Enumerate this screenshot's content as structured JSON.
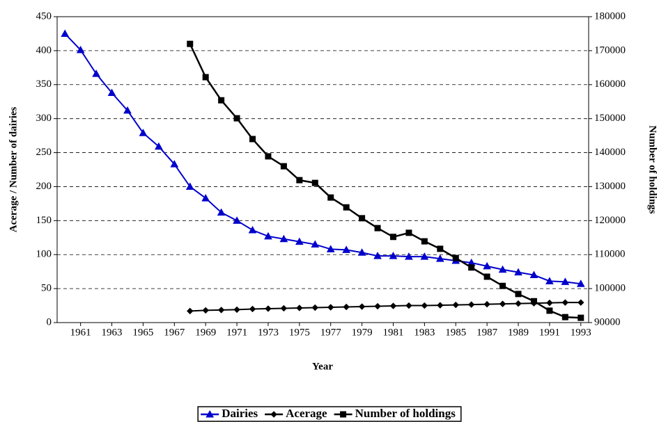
{
  "chart_data": {
    "type": "line",
    "x_label": "Year",
    "y_label": "Acerage / Number of dairies",
    "y2_label": "Number of holdings",
    "x": [
      1960,
      1961,
      1962,
      1963,
      1964,
      1965,
      1966,
      1967,
      1968,
      1969,
      1970,
      1971,
      1972,
      1973,
      1974,
      1975,
      1976,
      1977,
      1978,
      1979,
      1980,
      1981,
      1982,
      1983,
      1984,
      1985,
      1986,
      1987,
      1988,
      1989,
      1990,
      1991,
      1992,
      1993
    ],
    "xlim": [
      1959.5,
      1993.5
    ],
    "xticks": [
      1961,
      1963,
      1965,
      1967,
      1969,
      1971,
      1973,
      1975,
      1977,
      1979,
      1981,
      1983,
      1985,
      1987,
      1989,
      1991,
      1993
    ],
    "ylim": [
      0,
      450
    ],
    "yticks": [
      0,
      50,
      100,
      150,
      200,
      250,
      300,
      350,
      400,
      450
    ],
    "y2lim": [
      90000,
      180000
    ],
    "y2ticks": [
      90000,
      100000,
      110000,
      120000,
      130000,
      140000,
      150000,
      160000,
      170000,
      180000
    ],
    "grid": true,
    "legend": "bottom",
    "series": [
      {
        "name": "Dairies",
        "color": "#0000cc",
        "marker": "triangle",
        "values": [
          425,
          401,
          366,
          338,
          312,
          279,
          259,
          233,
          200,
          183,
          162,
          150,
          136,
          127,
          123,
          119,
          115,
          108,
          107,
          103,
          98,
          98,
          97,
          97,
          94,
          91,
          88,
          83,
          78,
          74,
          70,
          61,
          60,
          57
        ]
      },
      {
        "name": "Acerage",
        "color": "#000000",
        "marker": "diamond",
        "values": [
          null,
          null,
          null,
          null,
          null,
          null,
          null,
          null,
          17,
          18,
          18.5,
          19,
          20,
          20.5,
          21,
          21.5,
          22,
          22.5,
          23,
          23.5,
          24,
          24.5,
          25,
          25,
          25.5,
          26,
          26.5,
          27,
          27.5,
          28,
          28.5,
          29,
          29.5,
          29.5
        ]
      },
      {
        "name": "Number of holdings",
        "color": "#000000",
        "marker": "square",
        "axis": "y2",
        "values": [
          null,
          null,
          null,
          null,
          null,
          null,
          null,
          null,
          172000,
          162200,
          155400,
          150100,
          144000,
          138900,
          136000,
          131900,
          131100,
          126800,
          123900,
          120700,
          117800,
          115200,
          116400,
          113900,
          111700,
          109000,
          106200,
          103500,
          100800,
          98400,
          96300,
          93500,
          91600,
          91400
        ]
      }
    ]
  }
}
